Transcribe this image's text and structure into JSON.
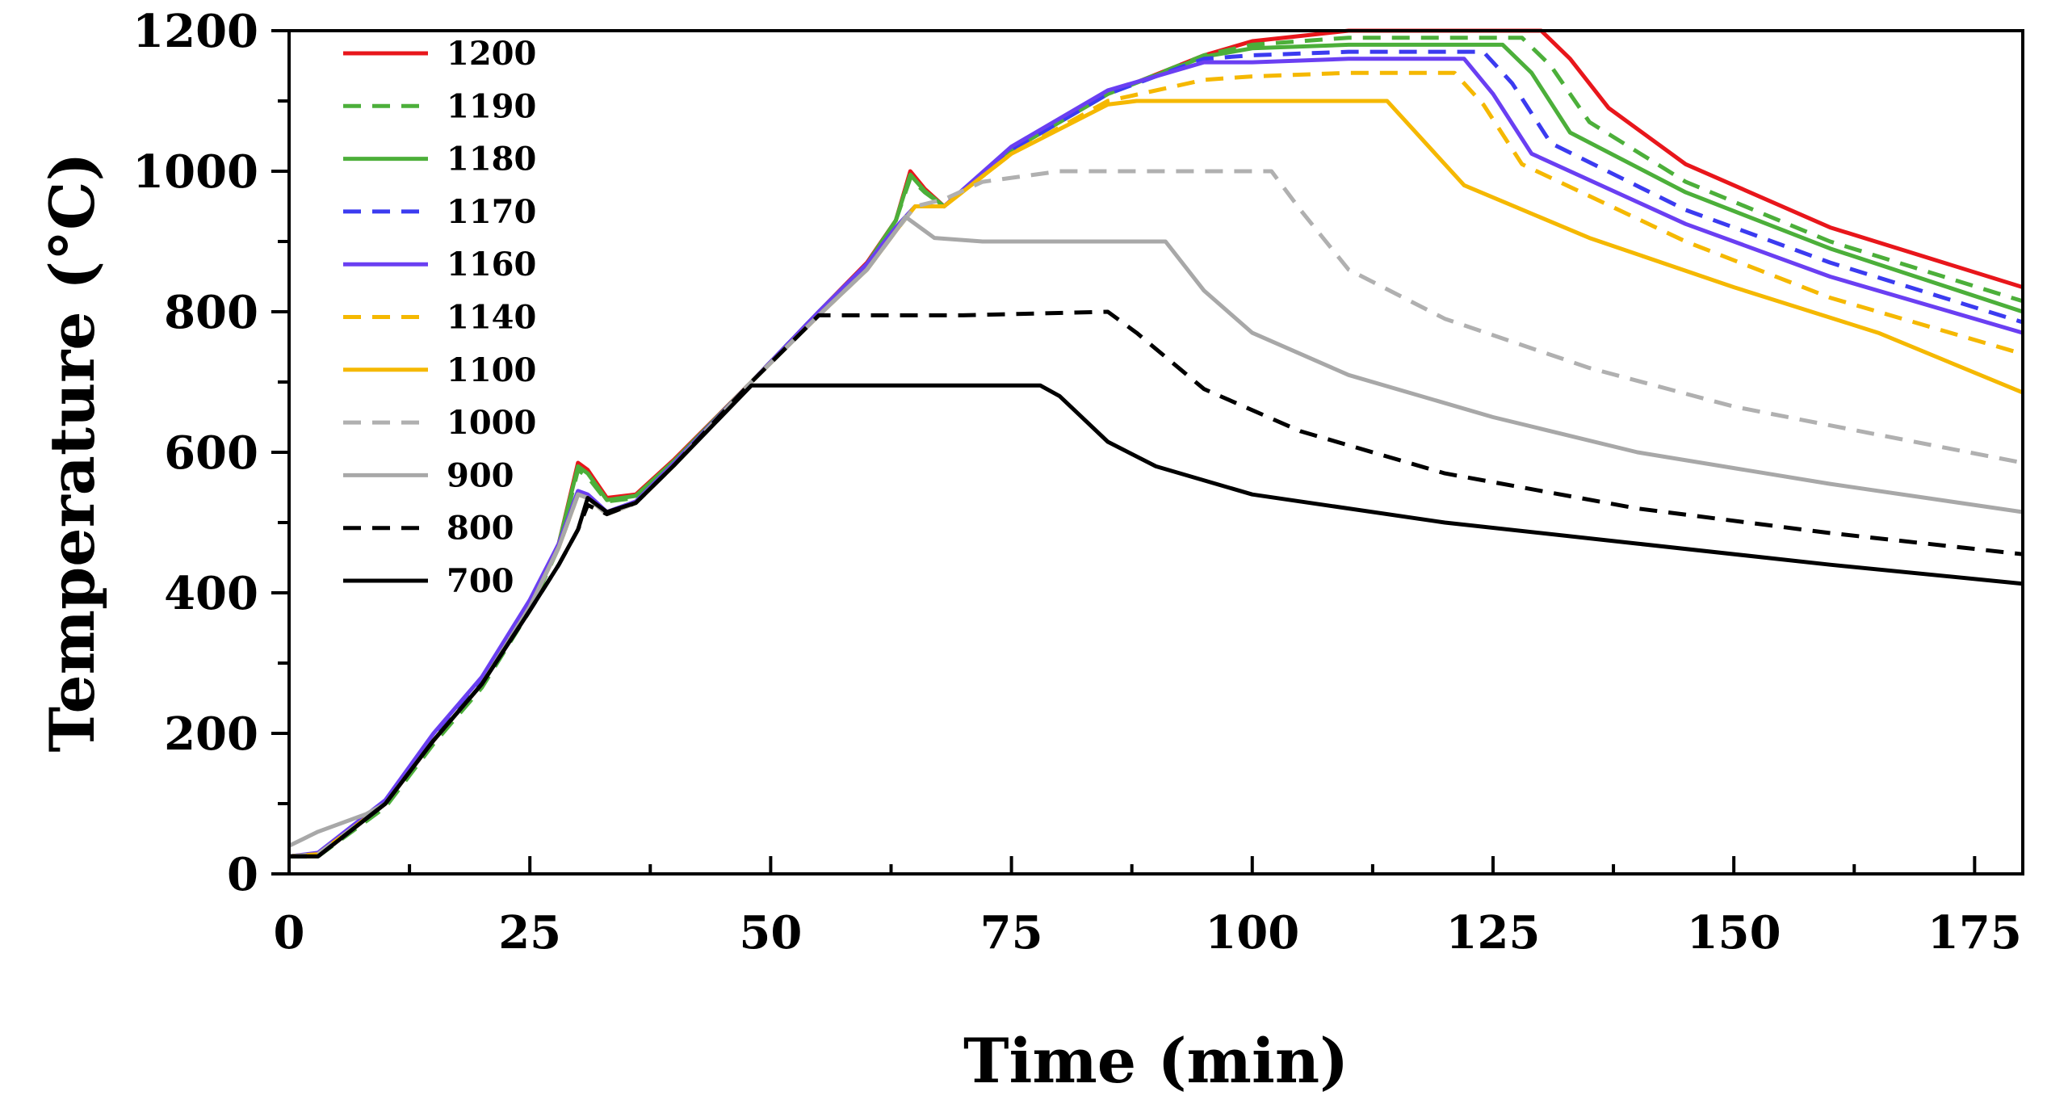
{
  "chart_data": {
    "type": "line",
    "xlabel": "Time (min)",
    "ylabel": "Temperature (°C)",
    "xlim": [
      0,
      180
    ],
    "ylim": [
      0,
      1200
    ],
    "xticks": [
      0,
      25,
      50,
      75,
      100,
      125,
      150,
      175
    ],
    "yticks": [
      0,
      200,
      400,
      600,
      800,
      1000,
      1200
    ],
    "legend_position": "top-left",
    "grid": false,
    "series": [
      {
        "name": "1200",
        "color": "#e8161b",
        "dash": "solid",
        "x": [
          0,
          3,
          10,
          15,
          20,
          25,
          28,
          30,
          31,
          33,
          36,
          40,
          48,
          55,
          60,
          63,
          64.5,
          66,
          68,
          75,
          85,
          95,
          100,
          110,
          130,
          133,
          137,
          145,
          160,
          180
        ],
        "y": [
          25,
          25,
          100,
          190,
          270,
          380,
          470,
          585,
          575,
          535,
          540,
          590,
          700,
          800,
          870,
          930,
          1000,
          975,
          950,
          1030,
          1110,
          1165,
          1185,
          1200,
          1200,
          1160,
          1090,
          1010,
          920,
          835
        ]
      },
      {
        "name": "1190",
        "color": "#4caf3a",
        "dash": "dashed",
        "x": [
          0,
          3,
          10,
          15,
          20,
          25,
          28,
          30,
          31,
          33,
          36,
          40,
          48,
          55,
          60,
          63,
          64.5,
          66,
          68,
          75,
          85,
          95,
          100,
          110,
          128,
          131,
          135,
          145,
          160,
          180
        ],
        "y": [
          25,
          25,
          95,
          185,
          265,
          375,
          465,
          575,
          565,
          530,
          535,
          585,
          700,
          800,
          865,
          930,
          990,
          970,
          950,
          1030,
          1110,
          1165,
          1180,
          1190,
          1190,
          1150,
          1070,
          985,
          900,
          815
        ]
      },
      {
        "name": "1180",
        "color": "#4caf3a",
        "dash": "solid",
        "x": [
          0,
          3,
          10,
          15,
          20,
          25,
          28,
          30,
          31,
          33,
          36,
          40,
          48,
          55,
          60,
          63,
          64.5,
          66,
          68,
          75,
          85,
          95,
          100,
          110,
          126,
          129,
          133,
          145,
          160,
          180
        ],
        "y": [
          25,
          25,
          100,
          190,
          270,
          380,
          470,
          580,
          570,
          532,
          538,
          588,
          700,
          800,
          868,
          930,
          995,
          972,
          950,
          1030,
          1110,
          1163,
          1175,
          1180,
          1180,
          1140,
          1055,
          970,
          890,
          800
        ]
      },
      {
        "name": "1170",
        "color": "#3b3bf0",
        "dash": "dashed",
        "x": [
          0,
          3,
          10,
          15,
          20,
          25,
          28,
          30,
          31,
          33,
          36,
          40,
          48,
          55,
          60,
          63,
          65,
          68,
          75,
          85,
          95,
          100,
          110,
          124,
          127,
          131,
          145,
          160,
          180
        ],
        "y": [
          25,
          28,
          100,
          195,
          275,
          385,
          470,
          545,
          540,
          515,
          530,
          585,
          700,
          800,
          868,
          920,
          950,
          950,
          1030,
          1110,
          1160,
          1165,
          1170,
          1170,
          1125,
          1040,
          945,
          870,
          785
        ]
      },
      {
        "name": "1160",
        "color": "#6a3ff2",
        "dash": "solid",
        "x": [
          0,
          3,
          10,
          15,
          20,
          25,
          28,
          30,
          31,
          33,
          36,
          40,
          48,
          55,
          60,
          63,
          65,
          68,
          75,
          85,
          95,
          100,
          110,
          122,
          125,
          129,
          145,
          160,
          180
        ],
        "y": [
          25,
          30,
          105,
          200,
          280,
          390,
          470,
          545,
          540,
          515,
          530,
          585,
          700,
          800,
          868,
          920,
          950,
          950,
          1035,
          1115,
          1155,
          1155,
          1160,
          1160,
          1110,
          1025,
          925,
          850,
          770
        ]
      },
      {
        "name": "1140",
        "color": "#f5b800",
        "dash": "dashed",
        "x": [
          0,
          3,
          10,
          15,
          20,
          25,
          28,
          30,
          31,
          33,
          36,
          40,
          48,
          55,
          60,
          63,
          65,
          68,
          75,
          85,
          95,
          100,
          110,
          121,
          124,
          128,
          145,
          160,
          180
        ],
        "y": [
          25,
          28,
          100,
          190,
          270,
          380,
          465,
          540,
          535,
          512,
          528,
          582,
          700,
          795,
          860,
          915,
          950,
          950,
          1025,
          1100,
          1130,
          1135,
          1140,
          1140,
          1095,
          1010,
          900,
          820,
          740
        ]
      },
      {
        "name": "1100",
        "color": "#f5b800",
        "dash": "solid",
        "x": [
          0,
          3,
          10,
          15,
          20,
          25,
          28,
          30,
          31,
          33,
          36,
          40,
          48,
          55,
          60,
          63,
          65,
          68,
          75,
          85,
          88,
          100,
          114,
          117,
          122,
          135,
          150,
          165,
          180
        ],
        "y": [
          25,
          28,
          100,
          190,
          270,
          380,
          465,
          540,
          535,
          512,
          528,
          582,
          700,
          795,
          860,
          915,
          950,
          950,
          1025,
          1095,
          1100,
          1100,
          1100,
          1055,
          980,
          905,
          835,
          770,
          685
        ]
      },
      {
        "name": "1000",
        "color": "#b0b0b0",
        "dash": "dashed",
        "x": [
          0,
          3,
          10,
          15,
          20,
          25,
          28,
          30,
          31,
          33,
          36,
          40,
          48,
          55,
          60,
          63,
          65,
          68,
          72,
          80,
          102,
          105,
          110,
          120,
          135,
          150,
          165,
          180
        ],
        "y": [
          25,
          28,
          100,
          190,
          270,
          380,
          465,
          540,
          535,
          512,
          528,
          582,
          700,
          795,
          860,
          915,
          950,
          960,
          985,
          1000,
          1000,
          945,
          860,
          790,
          720,
          665,
          625,
          585
        ]
      },
      {
        "name": "900",
        "color": "#a8a8a8",
        "dash": "solid",
        "x": [
          0,
          3,
          8,
          10,
          15,
          20,
          25,
          28,
          30,
          31,
          33,
          36,
          40,
          48,
          55,
          60,
          63,
          64,
          67,
          72,
          80,
          91,
          95,
          100,
          110,
          125,
          140,
          160,
          180
        ],
        "y": [
          40,
          60,
          85,
          100,
          190,
          270,
          380,
          465,
          540,
          535,
          512,
          528,
          582,
          700,
          795,
          860,
          915,
          935,
          905,
          900,
          900,
          900,
          830,
          770,
          710,
          650,
          600,
          555,
          515
        ]
      },
      {
        "name": "800",
        "color": "#000000",
        "dash": "dashed",
        "x": [
          0,
          3,
          10,
          15,
          20,
          25,
          28,
          30,
          31,
          33,
          36,
          40,
          48,
          55,
          60,
          70,
          85,
          88,
          95,
          105,
          120,
          140,
          160,
          180
        ],
        "y": [
          25,
          25,
          100,
          190,
          270,
          375,
          440,
          490,
          525,
          512,
          528,
          582,
          700,
          795,
          795,
          795,
          800,
          770,
          690,
          630,
          570,
          520,
          485,
          455
        ]
      },
      {
        "name": "700",
        "color": "#000000",
        "dash": "solid",
        "x": [
          0,
          3,
          10,
          15,
          20,
          25,
          28,
          30,
          31,
          33,
          36,
          40,
          48,
          60,
          70,
          78,
          80,
          85,
          90,
          100,
          120,
          140,
          160,
          180
        ],
        "y": [
          25,
          25,
          100,
          190,
          270,
          375,
          440,
          490,
          535,
          515,
          528,
          582,
          695,
          695,
          695,
          695,
          680,
          615,
          580,
          540,
          500,
          470,
          440,
          413
        ]
      }
    ]
  }
}
